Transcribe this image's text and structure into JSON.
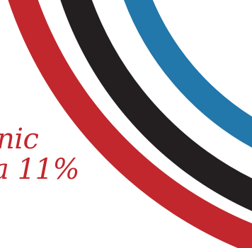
{
  "graphic": {
    "caption_line_1": "nic",
    "caption_line_2": "a 11%",
    "colors": {
      "background": "#ffffff",
      "red": "#c1272d",
      "black": "#231f20",
      "blue": "#2277ab",
      "text": "#c1272d"
    }
  }
}
